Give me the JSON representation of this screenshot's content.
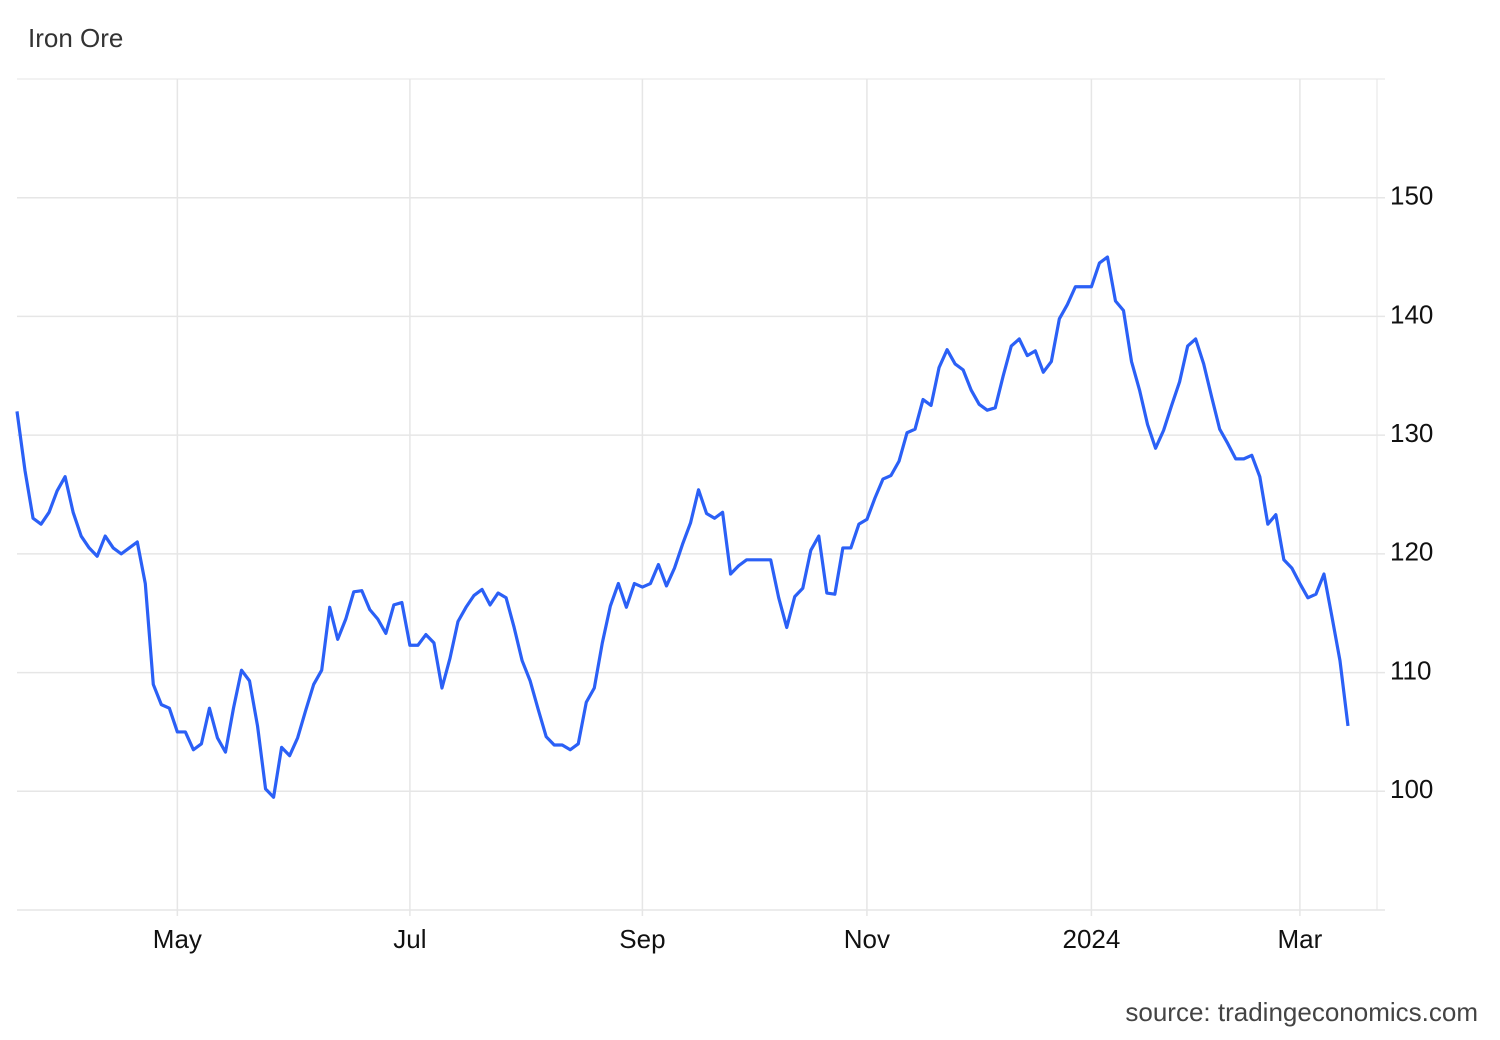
{
  "chart_data": {
    "type": "line",
    "title": "Iron Ore",
    "source": "source: tradingeconomics.com",
    "categories": [
      null,
      null,
      null,
      null,
      null,
      null,
      null,
      null,
      null,
      null,
      null,
      null,
      null,
      null,
      null,
      null,
      null,
      null,
      null,
      null,
      "May",
      null,
      null,
      null,
      null,
      null,
      null,
      null,
      null,
      null,
      null,
      null,
      null,
      null,
      null,
      null,
      null,
      null,
      null,
      null,
      null,
      null,
      null,
      null,
      null,
      null,
      null,
      null,
      null,
      "Jul",
      null,
      null,
      null,
      null,
      null,
      null,
      null,
      null,
      null,
      null,
      null,
      null,
      null,
      null,
      null,
      null,
      null,
      null,
      null,
      null,
      null,
      null,
      null,
      null,
      null,
      null,
      null,
      null,
      "Sep",
      null,
      null,
      null,
      null,
      null,
      null,
      null,
      null,
      null,
      null,
      null,
      null,
      null,
      null,
      null,
      null,
      null,
      null,
      null,
      null,
      null,
      null,
      null,
      null,
      null,
      null,
      null,
      "Nov",
      null,
      null,
      null,
      null,
      null,
      null,
      null,
      null,
      null,
      null,
      null,
      null,
      null,
      null,
      null,
      null,
      null,
      null,
      null,
      null,
      null,
      null,
      null,
      null,
      null,
      null,
      null,
      "2024",
      null,
      null,
      null,
      null,
      null,
      null,
      null,
      null,
      null,
      null,
      null,
      null,
      null,
      null,
      null,
      null,
      null,
      null,
      null,
      null,
      null,
      null,
      null,
      null,
      null,
      "Mar",
      null,
      null,
      null,
      null,
      null,
      null
    ],
    "values": [
      132,
      127,
      123,
      122.5,
      123.5,
      125.3,
      126.5,
      123.5,
      121.5,
      120.5,
      119.8,
      121.5,
      120.5,
      120,
      120.5,
      121,
      117.5,
      109,
      107.3,
      107,
      105,
      105,
      103.5,
      104,
      107,
      104.5,
      103.3,
      107,
      110.2,
      109.3,
      105.5,
      100.2,
      99.5,
      103.7,
      103,
      104.5,
      106.8,
      109,
      110.2,
      115.5,
      112.8,
      114.5,
      116.8,
      116.9,
      115.3,
      114.5,
      113.3,
      115.7,
      115.9,
      112.3,
      112.3,
      113.2,
      112.5,
      108.7,
      111.2,
      114.3,
      115.5,
      116.5,
      117,
      115.7,
      116.7,
      116.3,
      113.8,
      111,
      109.3,
      106.9,
      104.6,
      103.9,
      103.9,
      103.5,
      104,
      107.5,
      108.7,
      112.5,
      115.6,
      117.5,
      115.5,
      117.5,
      117.2,
      117.5,
      119.1,
      117.3,
      118.8,
      120.8,
      122.6,
      125.4,
      123.4,
      123,
      123.5,
      118.3,
      119,
      119.5,
      119.5,
      119.5,
      119.5,
      116.3,
      113.8,
      116.4,
      117.1,
      120.3,
      121.5,
      116.7,
      116.6,
      120.5,
      120.5,
      122.5,
      122.9,
      124.7,
      126.3,
      126.6,
      127.8,
      130.2,
      130.5,
      133,
      132.5,
      135.7,
      137.2,
      136,
      135.5,
      133.8,
      132.6,
      132.1,
      132.3,
      135,
      137.5,
      138.1,
      136.7,
      137.1,
      135.3,
      136.2,
      139.8,
      141,
      142.5,
      142.5,
      142.5,
      144.5,
      145,
      141.3,
      140.5,
      136.2,
      133.8,
      130.9,
      128.9,
      130.4,
      132.5,
      134.5,
      137.5,
      138.1,
      136,
      133.2,
      130.5,
      129.3,
      128,
      128,
      128.3,
      126.5,
      122.5,
      123.3,
      119.5,
      118.8,
      117.5,
      116.3,
      116.6,
      118.3,
      114.7,
      111,
      105.5
    ],
    "color": "#2b60f6",
    "ylim": [
      90,
      160
    ],
    "yticks": [
      100,
      110,
      120,
      130,
      140,
      150
    ],
    "grid": true
  }
}
